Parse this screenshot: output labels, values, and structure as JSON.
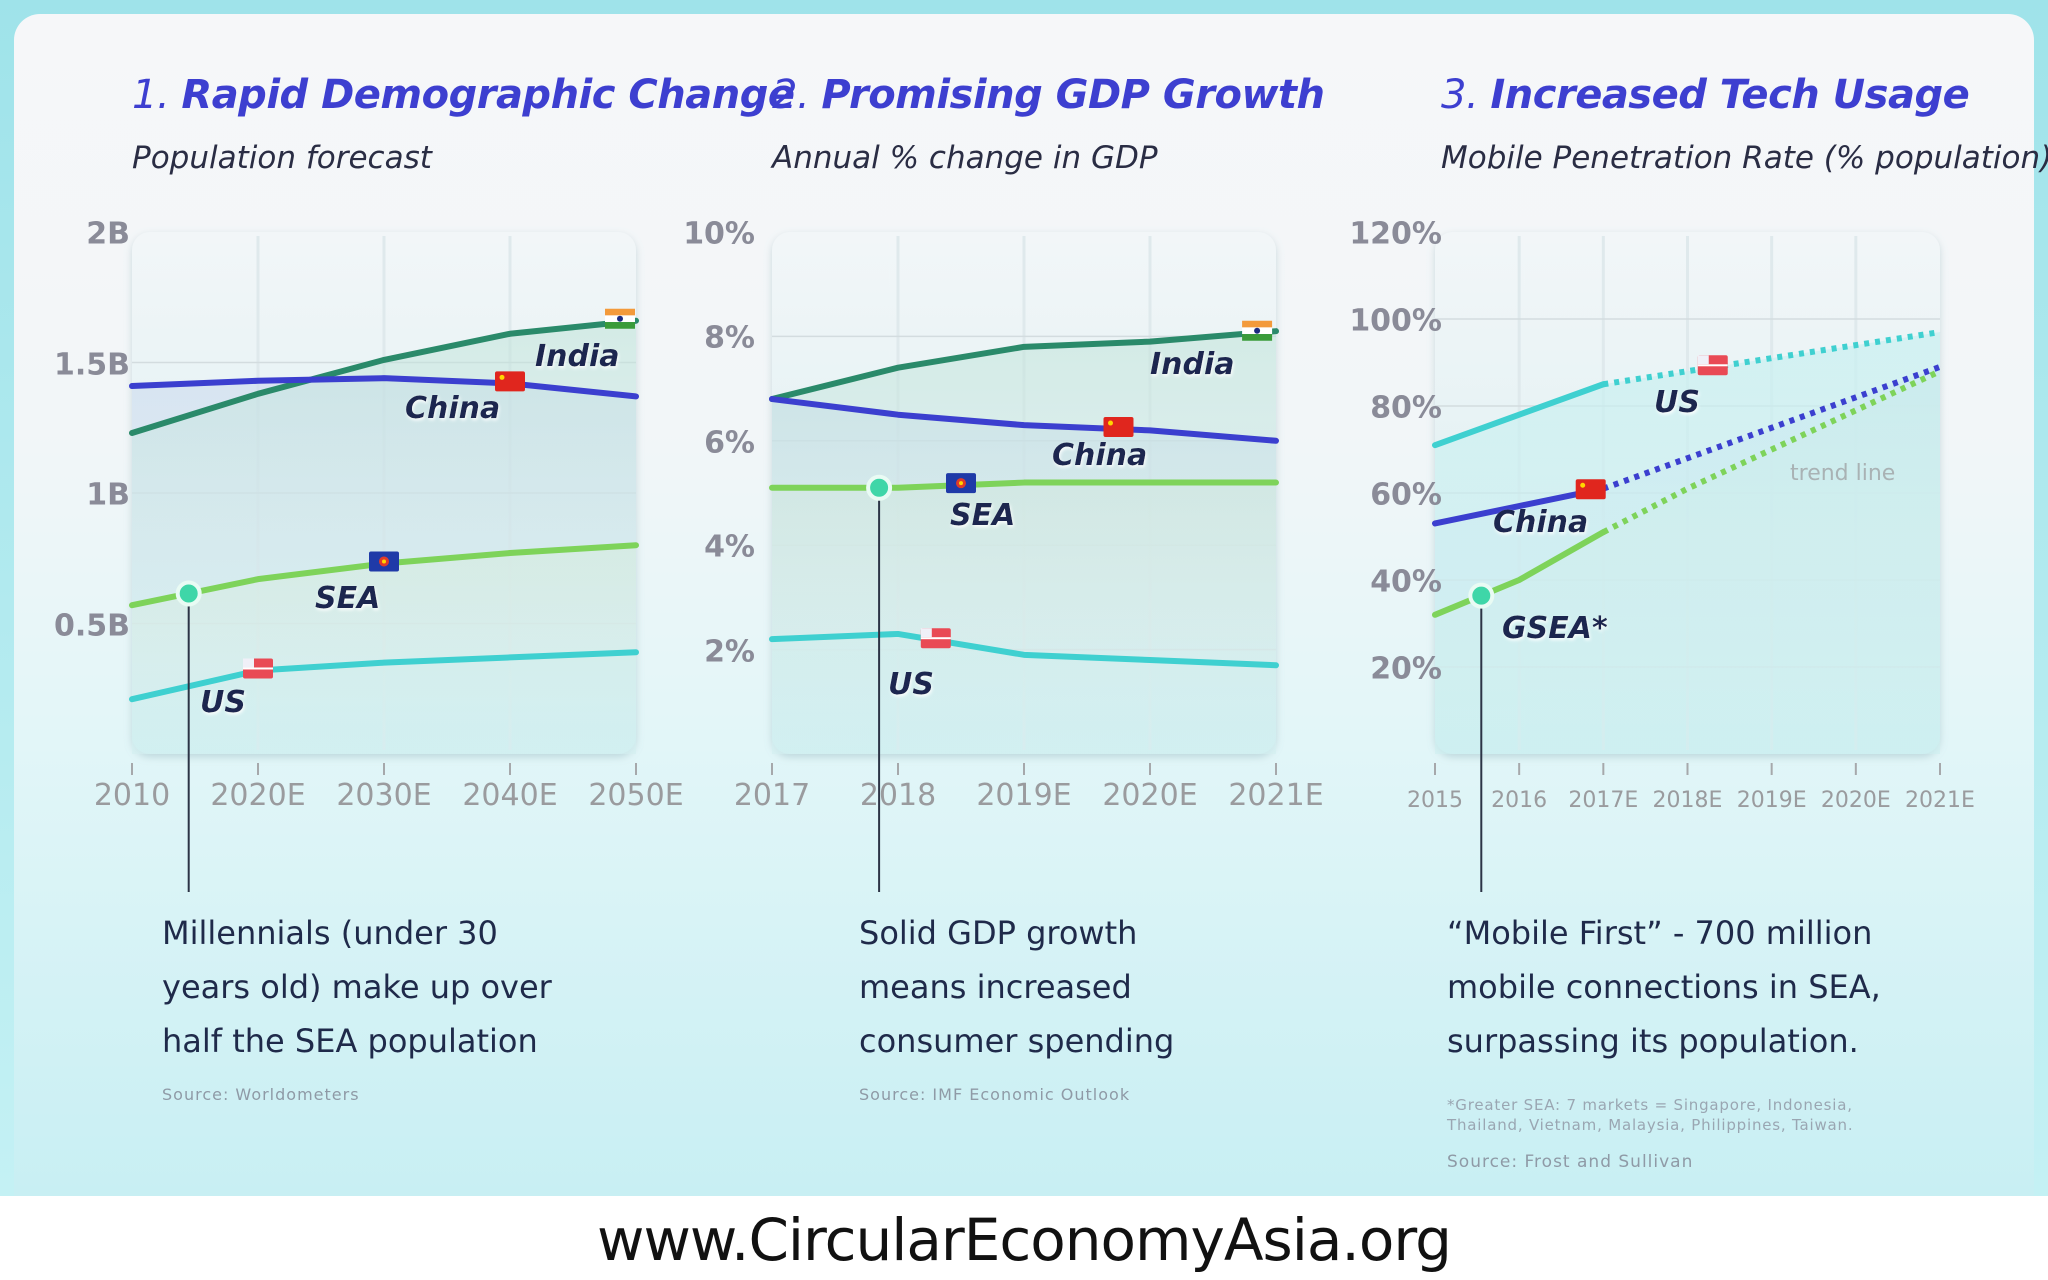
{
  "panels": [
    {
      "number": "1.",
      "title": "Rapid Demographic Change",
      "subtitle": "Population forecast",
      "body": "Millennials (under 30\nyears old) make up over\nhalf the SEA population",
      "source": "Source: Worldometers"
    },
    {
      "number": "2.",
      "title": "Promising GDP Growth",
      "subtitle": "Annual % change in GDP",
      "body": "Solid GDP growth\nmeans increased\nconsumer spending",
      "source": "Source: IMF Economic Outlook"
    },
    {
      "number": "3.",
      "title": "Increased Tech Usage",
      "subtitle": "Mobile Penetration Rate (% population)",
      "body": "“Mobile First” - 700 million\nmobile connections in SEA,\nsurpassing its population.",
      "footnote": "*Greater SEA: 7 markets = Singapore, Indonesia,\nThailand, Vietnam, Malaysia, Philippines, Taiwan.",
      "source": "Source: Frost and Sullivan"
    }
  ],
  "footer": "www.CircularEconomyAsia.org",
  "colors": {
    "india": "#2a8a6a",
    "china": "#3b3fcf",
    "sea": "#7ed35a",
    "us": "#3fd0d0",
    "title": "#3d3fd0",
    "marker": "#3fd6a8"
  },
  "chart_data": [
    {
      "type": "line",
      "title": "1. Rapid Demographic Change",
      "subtitle": "Population forecast",
      "categories": [
        "2010",
        "2020E",
        "2030E",
        "2040E",
        "2050E"
      ],
      "yticks": [
        "2B",
        "1.5B",
        "1B",
        "0.5B"
      ],
      "ytick_values": [
        2.0,
        1.5,
        1.0,
        0.5
      ],
      "ylim": [
        0,
        2.0
      ],
      "yunit": "billions",
      "grid": true,
      "series": [
        {
          "name": "India",
          "key": "india",
          "values": [
            1.23,
            1.38,
            1.51,
            1.61,
            1.66
          ],
          "flag": "india"
        },
        {
          "name": "China",
          "key": "china",
          "values": [
            1.41,
            1.43,
            1.44,
            1.42,
            1.37
          ],
          "flag": "china"
        },
        {
          "name": "SEA",
          "key": "sea",
          "values": [
            0.57,
            0.67,
            0.73,
            0.77,
            0.8
          ],
          "flag": "asean"
        },
        {
          "name": "US",
          "key": "us",
          "values": [
            0.21,
            0.32,
            0.35,
            0.37,
            0.39
          ],
          "flag": "us"
        }
      ],
      "annotation_marker": {
        "series": "SEA",
        "x_index": 0.45
      }
    },
    {
      "type": "line",
      "title": "2. Promising GDP Growth",
      "subtitle": "Annual % change in GDP",
      "categories": [
        "2017",
        "2018",
        "2019E",
        "2020E",
        "2021E"
      ],
      "yticks": [
        "10%",
        "8%",
        "6%",
        "4%",
        "2%"
      ],
      "ytick_values": [
        10,
        8,
        6,
        4,
        2
      ],
      "ylim": [
        0,
        10
      ],
      "yunit": "%",
      "grid": true,
      "series": [
        {
          "name": "India",
          "key": "india",
          "values": [
            6.8,
            7.4,
            7.8,
            7.9,
            8.1
          ],
          "flag": "india"
        },
        {
          "name": "China",
          "key": "china",
          "values": [
            6.8,
            6.5,
            6.3,
            6.2,
            6.0
          ],
          "flag": "china"
        },
        {
          "name": "SEA",
          "key": "sea",
          "values": [
            5.1,
            5.1,
            5.2,
            5.2,
            5.2
          ],
          "flag": "asean"
        },
        {
          "name": "US",
          "key": "us",
          "values": [
            2.2,
            2.3,
            1.9,
            1.8,
            1.7
          ],
          "flag": "us"
        }
      ],
      "annotation_marker": {
        "series": "SEA",
        "x_index": 0.85
      }
    },
    {
      "type": "line",
      "title": "3. Increased Tech Usage",
      "subtitle": "Mobile Penetration Rate (% population)",
      "categories": [
        "2015",
        "2016",
        "2017E",
        "2018E",
        "2019E",
        "2020E",
        "2021E"
      ],
      "yticks": [
        "120%",
        "100%",
        "80%",
        "60%",
        "40%",
        "20%"
      ],
      "ytick_values": [
        120,
        100,
        80,
        60,
        40,
        20
      ],
      "ylim": [
        0,
        120
      ],
      "yunit": "%",
      "grid": true,
      "series": [
        {
          "name": "US",
          "key": "us",
          "values": [
            71,
            78,
            85,
            88,
            91,
            94,
            97
          ],
          "flag": "us",
          "actual_until_index": 2
        },
        {
          "name": "China",
          "key": "china",
          "values": [
            53,
            57,
            61,
            68,
            75,
            82,
            89
          ],
          "flag": "china",
          "actual_until_index": 2
        },
        {
          "name": "GSEA*",
          "key": "sea",
          "values": [
            32,
            40,
            51,
            61,
            70,
            79,
            88
          ],
          "flag": null,
          "actual_until_index": 2
        }
      ],
      "annotations": [
        "trend line"
      ],
      "annotation_marker": {
        "series": "GSEA*",
        "x_index": 0.55
      }
    }
  ]
}
